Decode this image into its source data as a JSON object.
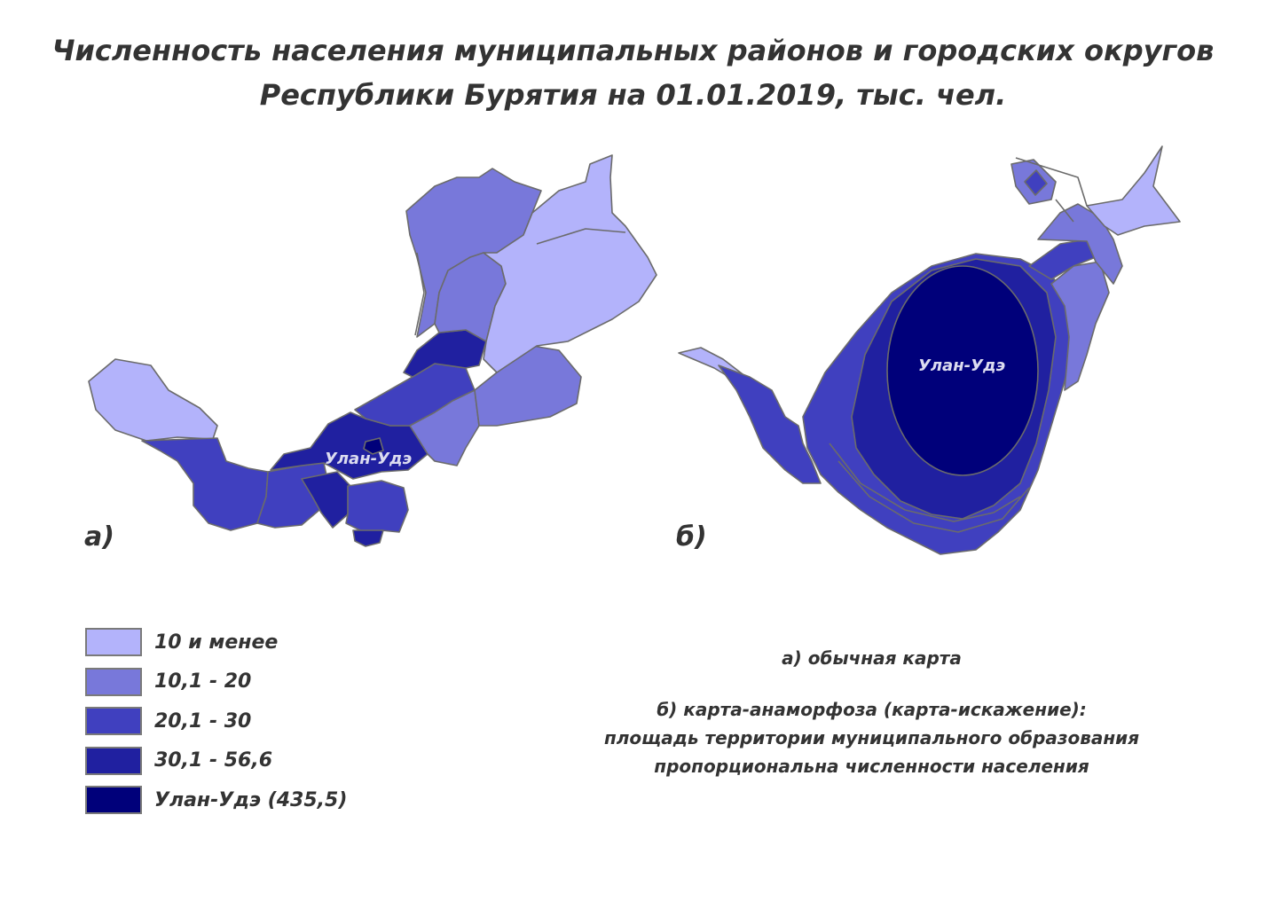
{
  "title": {
    "line1": "Численность населения муниципальных районов и городских округов",
    "line2": "Республики Бурятия на 01.01.2019, тыс. чел."
  },
  "map_a": {
    "panel_label": "а)",
    "city_label": "Улан-Удэ"
  },
  "map_b": {
    "panel_label": "б)",
    "city_label": "Улан-Удэ"
  },
  "legend": [
    {
      "label": "10 и менее",
      "color": "#b3b3fb"
    },
    {
      "label": "10,1 - 20",
      "color": "#7878da"
    },
    {
      "label": "20,1 - 30",
      "color": "#4040bf"
    },
    {
      "label": "30,1 - 56,6",
      "color": "#2020a0"
    },
    {
      "label": "Улан-Удэ (435,5)",
      "color": "#00007a"
    }
  ],
  "notes": {
    "line_a": "а) обычная карта",
    "line_b1": "б) карта-анаморфоза (карта-искажение):",
    "line_b2": "площадь территории муниципального образования",
    "line_b3": "пропорциональна численности населения"
  },
  "colors": {
    "class1": "#b3b3fb",
    "class2": "#7878da",
    "class3": "#4040bf",
    "class4": "#2020a0",
    "class5": "#00007a",
    "border": "#6b6b6b"
  }
}
